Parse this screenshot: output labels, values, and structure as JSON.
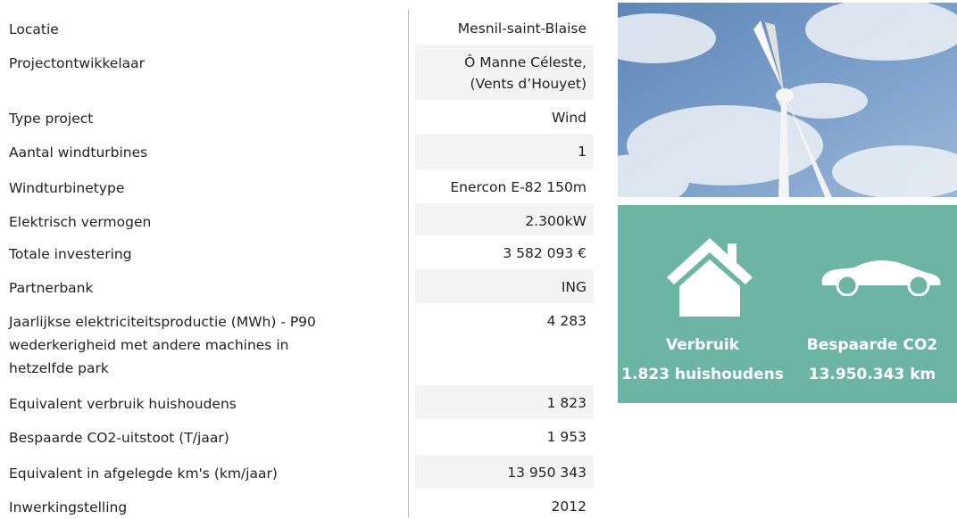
{
  "table": {
    "rows": [
      {
        "label": "Locatie",
        "value": "Mesnil-saint-Blaise"
      },
      {
        "label": "Projectontwikkelaar",
        "value": "Ô Manne Céleste,\n(Vents d’Houyet)"
      },
      {
        "label": "Type project",
        "value": "Wind"
      },
      {
        "label": "Aantal windturbines",
        "value": "1"
      },
      {
        "label": "Windturbinetype",
        "value": "Enercon E-82 150m"
      },
      {
        "label": "Elektrisch vermogen",
        "value": "2.300kW"
      },
      {
        "label": "Totale investering",
        "value": "3 582 093 €"
      },
      {
        "label": "Partnerbank",
        "value": "ING"
      },
      {
        "label": "Jaarlijkse elektriciteitsproductie (MWh) - P90\nwederkerigheid met andere machines in\nhetzelfde park",
        "value": "4 283"
      },
      {
        "label": "Equivalent verbruik huishoudens",
        "value": "1 823"
      },
      {
        "label": "Bespaarde CO2-uitstoot (T/jaar)",
        "value": "1 953"
      },
      {
        "label": "Equivalent in afgelegde km's (km/jaar)",
        "value": "13 950 343"
      },
      {
        "label": "Inwerkingstelling",
        "value": "2012"
      }
    ]
  },
  "stats": [
    {
      "title": "Verbruik",
      "value": "1.823 huishoudens"
    },
    {
      "title": "Bespaarde CO2",
      "value": "13.950.343 km"
    }
  ]
}
